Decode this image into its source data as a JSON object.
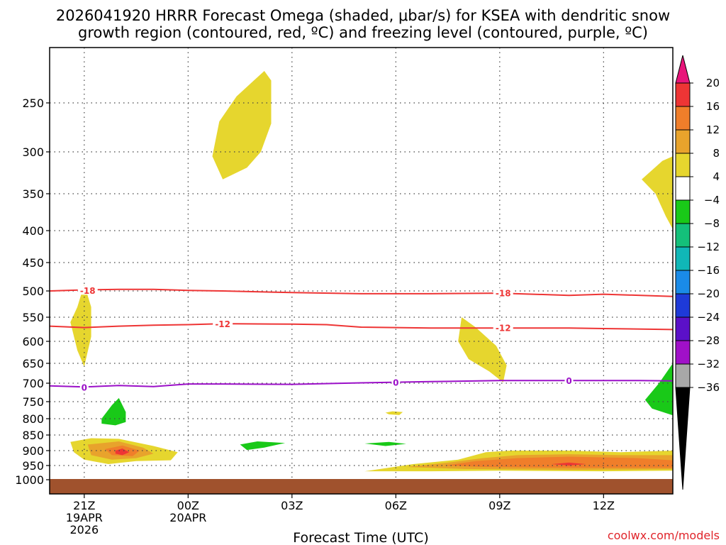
{
  "chart_data": {
    "type": "heatmap",
    "title": "2026041920 HRRR Forecast Omega (shaded, μbar/s) for KSEA with dendritic snow growth region (contoured, red, ºC) and freezing level (contoured, purple, ºC)",
    "title_lines": [
      "2026041920 HRRR Forecast Omega (shaded, μbar/s) for KSEA with dendritic snow",
      "growth region (contoured, red, ºC) and freezing level (contoured, purple, ºC)"
    ],
    "xlabel": "Forecast Time (UTC)",
    "ylabel": "",
    "credit": "coolwx.com/models",
    "x_axis": {
      "range_hours": [
        20,
        38
      ],
      "ticks": [
        {
          "hour": 21,
          "lines": [
            "21Z",
            "19APR",
            "2026"
          ]
        },
        {
          "hour": 24,
          "lines": [
            "00Z",
            "20APR"
          ]
        },
        {
          "hour": 27,
          "lines": [
            "03Z"
          ]
        },
        {
          "hour": 30,
          "lines": [
            "06Z"
          ]
        },
        {
          "hour": 33,
          "lines": [
            "09Z"
          ]
        },
        {
          "hour": 36,
          "lines": [
            "12Z"
          ]
        }
      ]
    },
    "y_axis": {
      "units": "hPa",
      "inverted": true,
      "ticks": [
        250,
        300,
        350,
        400,
        450,
        500,
        550,
        600,
        650,
        700,
        750,
        800,
        850,
        900,
        950,
        1000
      ],
      "grid": "dotted"
    },
    "colorbar": {
      "levels": [
        20,
        16,
        12,
        8,
        4,
        -4,
        -8,
        -12,
        -16,
        -20,
        -24,
        -28,
        -32,
        -36
      ],
      "colors": [
        "#e8157a",
        "#ee3535",
        "#f07e2a",
        "#e8a32c",
        "#e6d62e",
        "#ffffff",
        "#19c918",
        "#14c07a",
        "#10b7b7",
        "#1a8be8",
        "#1e3ad8",
        "#5b10c8",
        "#a010c8",
        "#a8a8a8",
        "#000000"
      ]
    },
    "contours": [
      {
        "name": "-18",
        "color": "#ee3535",
        "label": "-18",
        "points": [
          [
            20,
            500
          ],
          [
            21,
            498
          ],
          [
            22,
            497
          ],
          [
            23,
            497
          ],
          [
            24,
            499
          ],
          [
            25,
            500
          ],
          [
            27,
            503
          ],
          [
            29,
            505
          ],
          [
            31,
            505
          ],
          [
            33,
            504
          ],
          [
            35,
            508
          ],
          [
            36,
            506
          ],
          [
            38,
            510
          ]
        ],
        "label_positions": [
          [
            21.1,
            499
          ],
          [
            33.1,
            503.5
          ]
        ]
      },
      {
        "name": "-12",
        "color": "#ee3535",
        "label": "-12",
        "points": [
          [
            20,
            568
          ],
          [
            21,
            571
          ],
          [
            22,
            568
          ],
          [
            23,
            566
          ],
          [
            24,
            565
          ],
          [
            25,
            563
          ],
          [
            27,
            564
          ],
          [
            28,
            565
          ],
          [
            29,
            570
          ],
          [
            31,
            572
          ],
          [
            33,
            572
          ],
          [
            35,
            572
          ],
          [
            36,
            573
          ],
          [
            38,
            575
          ]
        ],
        "label_positions": [
          [
            25.0,
            563
          ],
          [
            33.1,
            571
          ]
        ]
      },
      {
        "name": "0",
        "color": "#9b10c8",
        "label": "0",
        "points": [
          [
            20,
            707
          ],
          [
            21,
            710
          ],
          [
            21.5,
            708
          ],
          [
            22,
            706
          ],
          [
            23,
            709
          ],
          [
            24,
            702
          ],
          [
            25,
            702
          ],
          [
            27,
            703
          ],
          [
            29,
            699
          ],
          [
            31,
            696
          ],
          [
            33,
            693
          ],
          [
            35,
            693
          ],
          [
            36,
            693
          ],
          [
            37,
            693
          ],
          [
            38,
            694
          ]
        ],
        "label_positions": [
          [
            21.0,
            710
          ],
          [
            30.0,
            697
          ],
          [
            35.0,
            693
          ]
        ]
      }
    ],
    "shaded_regions": [
      {
        "value": 4,
        "points": [
          [
            24.7,
            305
          ],
          [
            24.9,
            268
          ],
          [
            25.4,
            244
          ],
          [
            25.9,
            230
          ],
          [
            26.2,
            222
          ],
          [
            26.4,
            230
          ],
          [
            26.4,
            270
          ],
          [
            26.1,
            300
          ],
          [
            25.7,
            318
          ],
          [
            25.0,
            332
          ]
        ]
      },
      {
        "value": 4,
        "points": [
          [
            37.1,
            332
          ],
          [
            37.7,
            310
          ],
          [
            38,
            305
          ],
          [
            38,
            398
          ],
          [
            37.8,
            380
          ],
          [
            37.5,
            350
          ]
        ]
      },
      {
        "value": 4,
        "points": [
          [
            20.6,
            560
          ],
          [
            20.8,
            530
          ],
          [
            21.0,
            488
          ],
          [
            21.2,
            530
          ],
          [
            21.2,
            590
          ],
          [
            21.0,
            658
          ],
          [
            20.8,
            620
          ]
        ]
      },
      {
        "value": 4,
        "points": [
          [
            31.9,
            550
          ],
          [
            32.3,
            570
          ],
          [
            32.9,
            610
          ],
          [
            33.2,
            655
          ],
          [
            33.1,
            698
          ],
          [
            32.7,
            670
          ],
          [
            32.1,
            640
          ],
          [
            31.8,
            600
          ]
        ]
      },
      {
        "value": 4,
        "points": [
          [
            29.7,
            782
          ],
          [
            29.9,
            778
          ],
          [
            30.2,
            780
          ],
          [
            30.1,
            789
          ],
          [
            29.8,
            787
          ]
        ]
      },
      {
        "value": 4,
        "points": [
          [
            20.6,
            872
          ],
          [
            21.2,
            860
          ],
          [
            22.0,
            862
          ],
          [
            23.0,
            885
          ],
          [
            23.7,
            905
          ],
          [
            23.5,
            932
          ],
          [
            22.5,
            935
          ],
          [
            21.7,
            945
          ],
          [
            21.0,
            930
          ],
          [
            20.7,
            905
          ]
        ]
      },
      {
        "value": 8,
        "points": [
          [
            21.1,
            880
          ],
          [
            22.0,
            870
          ],
          [
            22.7,
            890
          ],
          [
            23.0,
            910
          ],
          [
            22.5,
            925
          ],
          [
            21.8,
            930
          ],
          [
            21.2,
            915
          ]
        ]
      },
      {
        "value": 12,
        "points": [
          [
            21.6,
            895
          ],
          [
            22.1,
            883
          ],
          [
            22.6,
            900
          ],
          [
            22.4,
            918
          ],
          [
            21.8,
            915
          ]
        ]
      },
      {
        "value": 16,
        "points": [
          [
            21.9,
            900
          ],
          [
            22.1,
            893
          ],
          [
            22.3,
            905
          ],
          [
            22.1,
            915
          ],
          [
            21.9,
            910
          ]
        ]
      },
      {
        "value": 4,
        "points": [
          [
            29.1,
            970
          ],
          [
            30.5,
            945
          ],
          [
            31.8,
            930
          ],
          [
            32.6,
            905
          ],
          [
            33.3,
            900
          ],
          [
            35.0,
            900
          ],
          [
            36.5,
            905
          ],
          [
            38,
            900
          ],
          [
            38,
            968
          ],
          [
            36.0,
            970
          ],
          [
            33.0,
            968
          ],
          [
            31.0,
            970
          ]
        ]
      },
      {
        "value": 8,
        "points": [
          [
            30.3,
            955
          ],
          [
            31.5,
            940
          ],
          [
            32.5,
            925
          ],
          [
            33.5,
            915
          ],
          [
            35.0,
            912
          ],
          [
            36.5,
            915
          ],
          [
            38,
            915
          ],
          [
            38,
            963
          ],
          [
            35.0,
            965
          ],
          [
            32.0,
            962
          ]
        ]
      },
      {
        "value": 12,
        "points": [
          [
            31.4,
            950
          ],
          [
            32.3,
            935
          ],
          [
            33.5,
            925
          ],
          [
            35.0,
            920
          ],
          [
            37.0,
            925
          ],
          [
            38,
            932
          ],
          [
            38,
            958
          ],
          [
            35.0,
            958
          ],
          [
            32.5,
            955
          ]
        ]
      },
      {
        "value": 16,
        "points": [
          [
            34.5,
            945
          ],
          [
            35.0,
            940
          ],
          [
            35.5,
            945
          ],
          [
            35.0,
            950
          ]
        ]
      },
      {
        "value": -4,
        "points": [
          [
            21.5,
            800
          ],
          [
            21.8,
            760
          ],
          [
            22.0,
            740
          ],
          [
            22.2,
            780
          ],
          [
            22.2,
            810
          ],
          [
            21.9,
            820
          ],
          [
            21.5,
            815
          ]
        ]
      },
      {
        "value": -4,
        "points": [
          [
            25.5,
            880
          ],
          [
            26.0,
            870
          ],
          [
            26.8,
            875
          ],
          [
            26.2,
            890
          ],
          [
            25.7,
            898
          ]
        ]
      },
      {
        "value": -4,
        "points": [
          [
            29.1,
            877
          ],
          [
            29.8,
            872
          ],
          [
            30.3,
            878
          ],
          [
            29.7,
            885
          ]
        ]
      },
      {
        "value": -4,
        "points": [
          [
            37.2,
            745
          ],
          [
            37.6,
            700
          ],
          [
            38,
            650
          ],
          [
            38,
            790
          ],
          [
            37.4,
            770
          ]
        ]
      }
    ],
    "ground_band_color": "#a0522d"
  }
}
